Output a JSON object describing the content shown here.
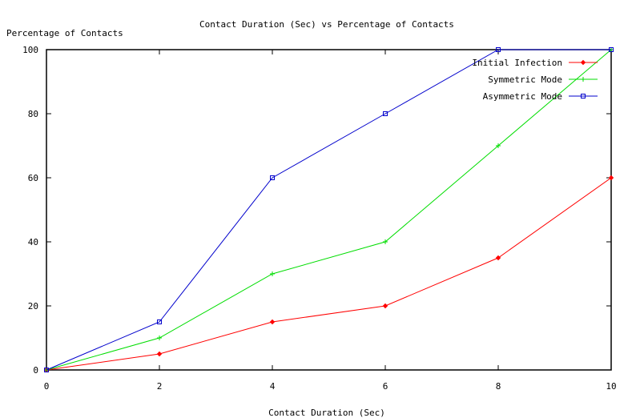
{
  "chart_data": {
    "type": "line",
    "title": "Contact Duration (Sec) vs Percentage of Contacts",
    "xlabel": "Contact Duration (Sec)",
    "ylabel": "Percentage of Contacts",
    "x": [
      0,
      2,
      4,
      6,
      8,
      10
    ],
    "xlim": [
      0,
      10
    ],
    "ylim": [
      0,
      100
    ],
    "xticks": [
      0,
      2,
      4,
      6,
      8,
      10
    ],
    "yticks": [
      0,
      20,
      40,
      60,
      80,
      100
    ],
    "grid": false,
    "legend_position": "top-right",
    "series": [
      {
        "name": "Initial Infection",
        "color": "#ff0000",
        "marker": "diamond",
        "values": [
          0,
          5,
          15,
          20,
          35,
          60
        ]
      },
      {
        "name": "Symmetric Mode",
        "color": "#00dd00",
        "marker": "plus",
        "values": [
          0,
          10,
          30,
          40,
          70,
          100
        ]
      },
      {
        "name": "Asymmetric Mode",
        "color": "#0000cc",
        "marker": "square",
        "values": [
          0,
          15,
          60,
          80,
          100,
          100
        ]
      }
    ]
  }
}
